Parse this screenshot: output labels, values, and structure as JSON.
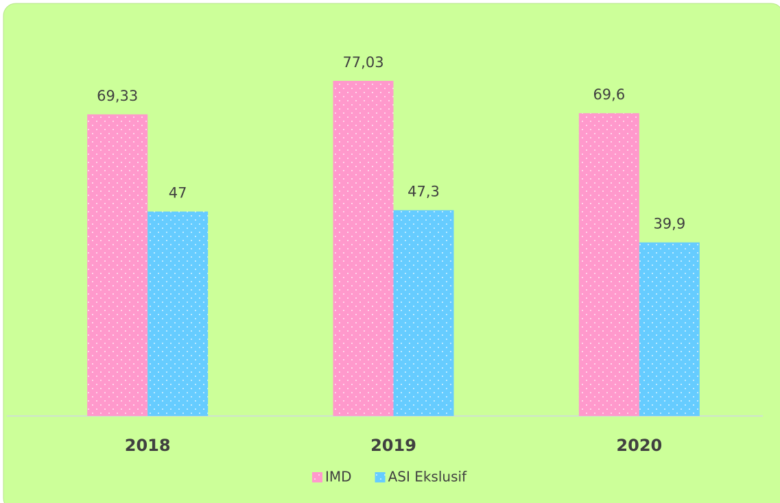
{
  "chart_data": {
    "type": "bar",
    "categories": [
      "2018",
      "2019",
      "2020"
    ],
    "series": [
      {
        "name": "IMD",
        "color": "#ff99cc",
        "values": [
          69.33,
          77.03,
          69.6
        ],
        "value_labels": [
          "69,33",
          "77,03",
          "69,6"
        ]
      },
      {
        "name": "ASI Ekslusif",
        "color": "#66ccff",
        "values": [
          47,
          47.3,
          39.9
        ],
        "value_labels": [
          "47",
          "47,3",
          "39,9"
        ]
      }
    ]
  }
}
